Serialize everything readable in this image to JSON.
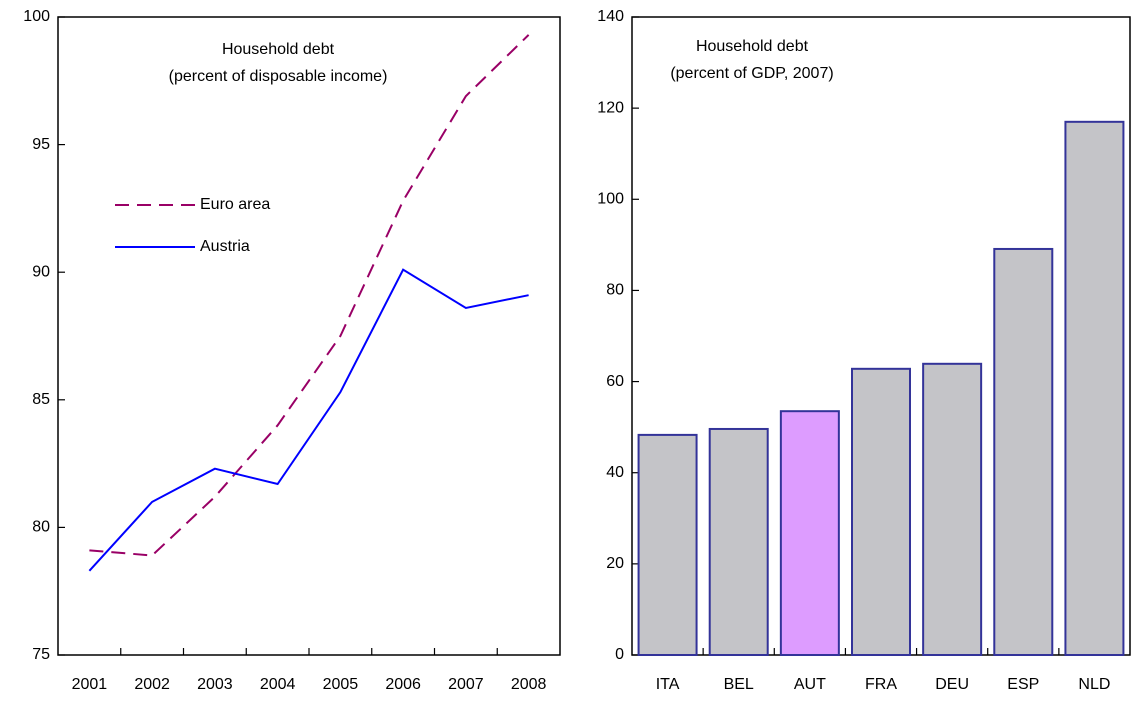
{
  "chart_data": [
    {
      "type": "line",
      "title": "Household debt",
      "subtitle": "(percent of disposable income)",
      "categories": [
        "2001",
        "2002",
        "2003",
        "2004",
        "2005",
        "2006",
        "2007",
        "2008"
      ],
      "series": [
        {
          "name": "Euro area",
          "color": "#990066",
          "line_style": "dashed",
          "values": [
            79.1,
            78.9,
            81.2,
            84.0,
            87.5,
            92.8,
            96.9,
            99.3
          ]
        },
        {
          "name": "Austria",
          "color": "#0000ff",
          "line_style": "solid",
          "values": [
            78.3,
            81.0,
            82.3,
            81.7,
            85.3,
            90.1,
            88.6,
            89.1
          ]
        }
      ],
      "ylim": [
        75,
        100
      ],
      "yticks": [
        75,
        80,
        85,
        90,
        95,
        100
      ]
    },
    {
      "type": "bar",
      "title": "Household debt",
      "subtitle": "(percent of GDP, 2007)",
      "categories": [
        "ITA",
        "BEL",
        "AUT",
        "FRA",
        "DEU",
        "ESP",
        "NLD"
      ],
      "values": [
        48.3,
        49.6,
        53.5,
        62.8,
        63.9,
        89.1,
        117.0
      ],
      "colors": [
        "#c4c4c8",
        "#c4c4c8",
        "#dd9cff",
        "#c4c4c8",
        "#c4c4c8",
        "#c4c4c8",
        "#c4c4c8"
      ],
      "edge_color": "#333399",
      "ylim": [
        0,
        140
      ],
      "yticks": [
        0,
        20,
        40,
        60,
        80,
        100,
        120,
        140
      ]
    }
  ]
}
